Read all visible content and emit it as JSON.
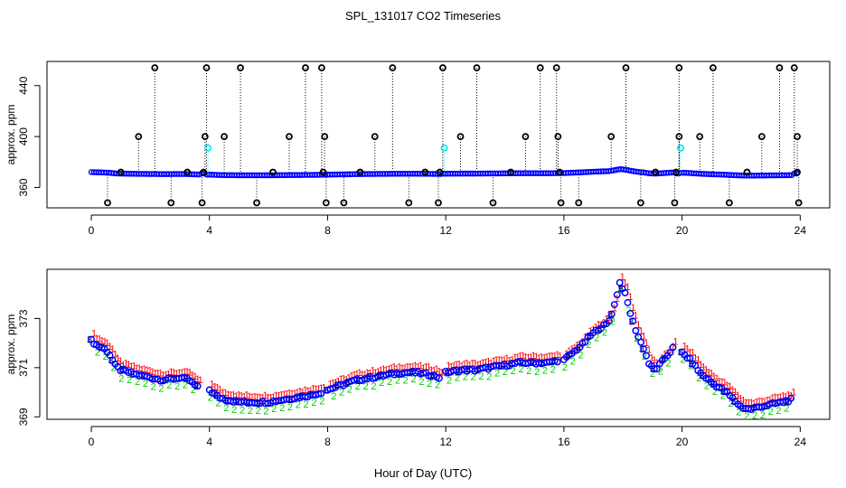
{
  "figure": {
    "title": "SPL_131017  CO2 Timeseries",
    "xlabel": "Hour of Day (UTC)"
  },
  "colors": {
    "black": "#000000",
    "blue": "#0000ff",
    "cyan": "#00e5ee",
    "red": "#ff0000",
    "green": "#00cc00",
    "navy": "#000080"
  },
  "chart_data": [
    {
      "type": "scatter",
      "panel": "top",
      "ylabel": "approx. ppm",
      "xlim": [
        -1.5,
        25
      ],
      "ylim": [
        344,
        459
      ],
      "xticks": [
        0,
        4,
        8,
        12,
        16,
        20,
        24
      ],
      "xtick_labels": [
        "0",
        "4",
        "8",
        "12",
        "16",
        "20",
        "24"
      ],
      "yticks": [
        360,
        400,
        440
      ],
      "ytick_labels": [
        "360",
        "400",
        "440"
      ],
      "high_flags": [
        {
          "x": 2.15,
          "y": 454
        },
        {
          "x": 3.9,
          "y": 454
        },
        {
          "x": 5.05,
          "y": 454
        },
        {
          "x": 7.25,
          "y": 454
        },
        {
          "x": 7.8,
          "y": 454
        },
        {
          "x": 10.2,
          "y": 454
        },
        {
          "x": 11.9,
          "y": 454
        },
        {
          "x": 13.05,
          "y": 454
        },
        {
          "x": 15.2,
          "y": 454
        },
        {
          "x": 15.75,
          "y": 454
        },
        {
          "x": 18.1,
          "y": 454
        },
        {
          "x": 19.9,
          "y": 454
        },
        {
          "x": 21.05,
          "y": 454
        },
        {
          "x": 23.3,
          "y": 454
        },
        {
          "x": 23.8,
          "y": 454
        },
        {
          "x": 1.6,
          "y": 400
        },
        {
          "x": 3.85,
          "y": 400
        },
        {
          "x": 4.5,
          "y": 400
        },
        {
          "x": 6.7,
          "y": 400
        },
        {
          "x": 7.9,
          "y": 400
        },
        {
          "x": 9.6,
          "y": 400
        },
        {
          "x": 12.5,
          "y": 400
        },
        {
          "x": 14.7,
          "y": 400
        },
        {
          "x": 15.8,
          "y": 400
        },
        {
          "x": 17.6,
          "y": 400
        },
        {
          "x": 19.9,
          "y": 400
        },
        {
          "x": 20.6,
          "y": 400
        },
        {
          "x": 22.7,
          "y": 400
        },
        {
          "x": 23.9,
          "y": 400
        }
      ],
      "low_flags": [
        {
          "x": 0.55,
          "y": 348
        },
        {
          "x": 2.7,
          "y": 348
        },
        {
          "x": 3.75,
          "y": 348
        },
        {
          "x": 5.6,
          "y": 348
        },
        {
          "x": 7.95,
          "y": 348
        },
        {
          "x": 8.55,
          "y": 348
        },
        {
          "x": 10.75,
          "y": 348
        },
        {
          "x": 11.75,
          "y": 348
        },
        {
          "x": 13.6,
          "y": 348
        },
        {
          "x": 15.9,
          "y": 348
        },
        {
          "x": 16.5,
          "y": 348
        },
        {
          "x": 18.6,
          "y": 348
        },
        {
          "x": 19.75,
          "y": 348
        },
        {
          "x": 21.6,
          "y": 348
        },
        {
          "x": 23.95,
          "y": 348
        }
      ],
      "mid_flags": [
        {
          "x": 1.0,
          "y": 372
        },
        {
          "x": 3.25,
          "y": 372
        },
        {
          "x": 3.8,
          "y": 372
        },
        {
          "x": 6.15,
          "y": 372
        },
        {
          "x": 7.85,
          "y": 372
        },
        {
          "x": 9.1,
          "y": 372
        },
        {
          "x": 11.3,
          "y": 372
        },
        {
          "x": 11.8,
          "y": 372
        },
        {
          "x": 14.2,
          "y": 372
        },
        {
          "x": 15.85,
          "y": 372
        },
        {
          "x": 19.1,
          "y": 372
        },
        {
          "x": 19.8,
          "y": 372
        },
        {
          "x": 22.2,
          "y": 372
        },
        {
          "x": 23.9,
          "y": 372
        }
      ],
      "cyan_points": [
        {
          "x": 3.95,
          "y": 391
        },
        {
          "x": 11.95,
          "y": 391
        },
        {
          "x": 19.95,
          "y": 391
        }
      ],
      "baseline_range": [
        0,
        23.9
      ],
      "baseline_note": "dense blue series tracks the lower panel values (approx. 369-374 ppm)"
    },
    {
      "type": "scatter",
      "panel": "bottom",
      "ylabel": "approx. ppm",
      "xlim": [
        -1.5,
        25
      ],
      "ylim": [
        368.9,
        375.0
      ],
      "xticks": [
        0,
        4,
        8,
        12,
        16,
        20,
        24
      ],
      "xtick_labels": [
        "0",
        "4",
        "8",
        "12",
        "16",
        "20",
        "24"
      ],
      "yticks": [
        369,
        371,
        373
      ],
      "ytick_labels": [
        "369",
        "371",
        "373"
      ],
      "marker_labels": [
        "1",
        "2",
        "3"
      ],
      "segments": [
        {
          "x": [
            0,
            0.2,
            0.4,
            0.6,
            0.8,
            1.0,
            1.3,
            1.6,
            2.0,
            2.4,
            2.8,
            3.0,
            3.3,
            3.6
          ],
          "y": [
            372.1,
            371.9,
            371.8,
            371.6,
            371.1,
            370.9,
            370.8,
            370.7,
            370.6,
            370.5,
            370.55,
            370.6,
            370.5,
            370.2
          ]
        },
        {
          "x": [
            4.0,
            4.3,
            4.6,
            5.0,
            5.5,
            6.0,
            6.5,
            7.0,
            7.5,
            7.8
          ],
          "y": [
            370.1,
            369.8,
            369.7,
            369.6,
            369.6,
            369.6,
            369.7,
            369.8,
            369.9,
            370.0
          ]
        },
        {
          "x": [
            8.0,
            8.5,
            9.0,
            9.5,
            10.0,
            10.5,
            11.0,
            11.5,
            11.8
          ],
          "y": [
            370.1,
            370.3,
            370.5,
            370.6,
            370.7,
            370.8,
            370.8,
            370.7,
            370.6
          ]
        },
        {
          "x": [
            12.0,
            12.5,
            13.0,
            13.5,
            14.0,
            14.5,
            15.0,
            15.5,
            15.8
          ],
          "y": [
            370.8,
            370.9,
            370.9,
            371.0,
            371.1,
            371.2,
            371.2,
            371.2,
            371.3
          ]
        },
        {
          "x": [
            16.0,
            16.3,
            16.6,
            16.9,
            17.2,
            17.5,
            17.7,
            17.9,
            18.1,
            18.3,
            18.5,
            18.7,
            18.9,
            19.1,
            19.3,
            19.5,
            19.7
          ],
          "y": [
            371.3,
            371.6,
            371.9,
            372.3,
            372.6,
            372.8,
            373.5,
            374.5,
            373.9,
            373.0,
            372.3,
            371.8,
            371.1,
            370.9,
            371.2,
            371.5,
            371.8
          ]
        },
        {
          "x": [
            20.0,
            20.3,
            20.6,
            21.0,
            21.5,
            22.0,
            22.3,
            22.6,
            23.0,
            23.4,
            23.7
          ],
          "y": [
            371.6,
            371.3,
            370.8,
            370.4,
            370.0,
            369.4,
            369.3,
            369.4,
            369.5,
            369.6,
            369.7
          ]
        }
      ]
    }
  ]
}
